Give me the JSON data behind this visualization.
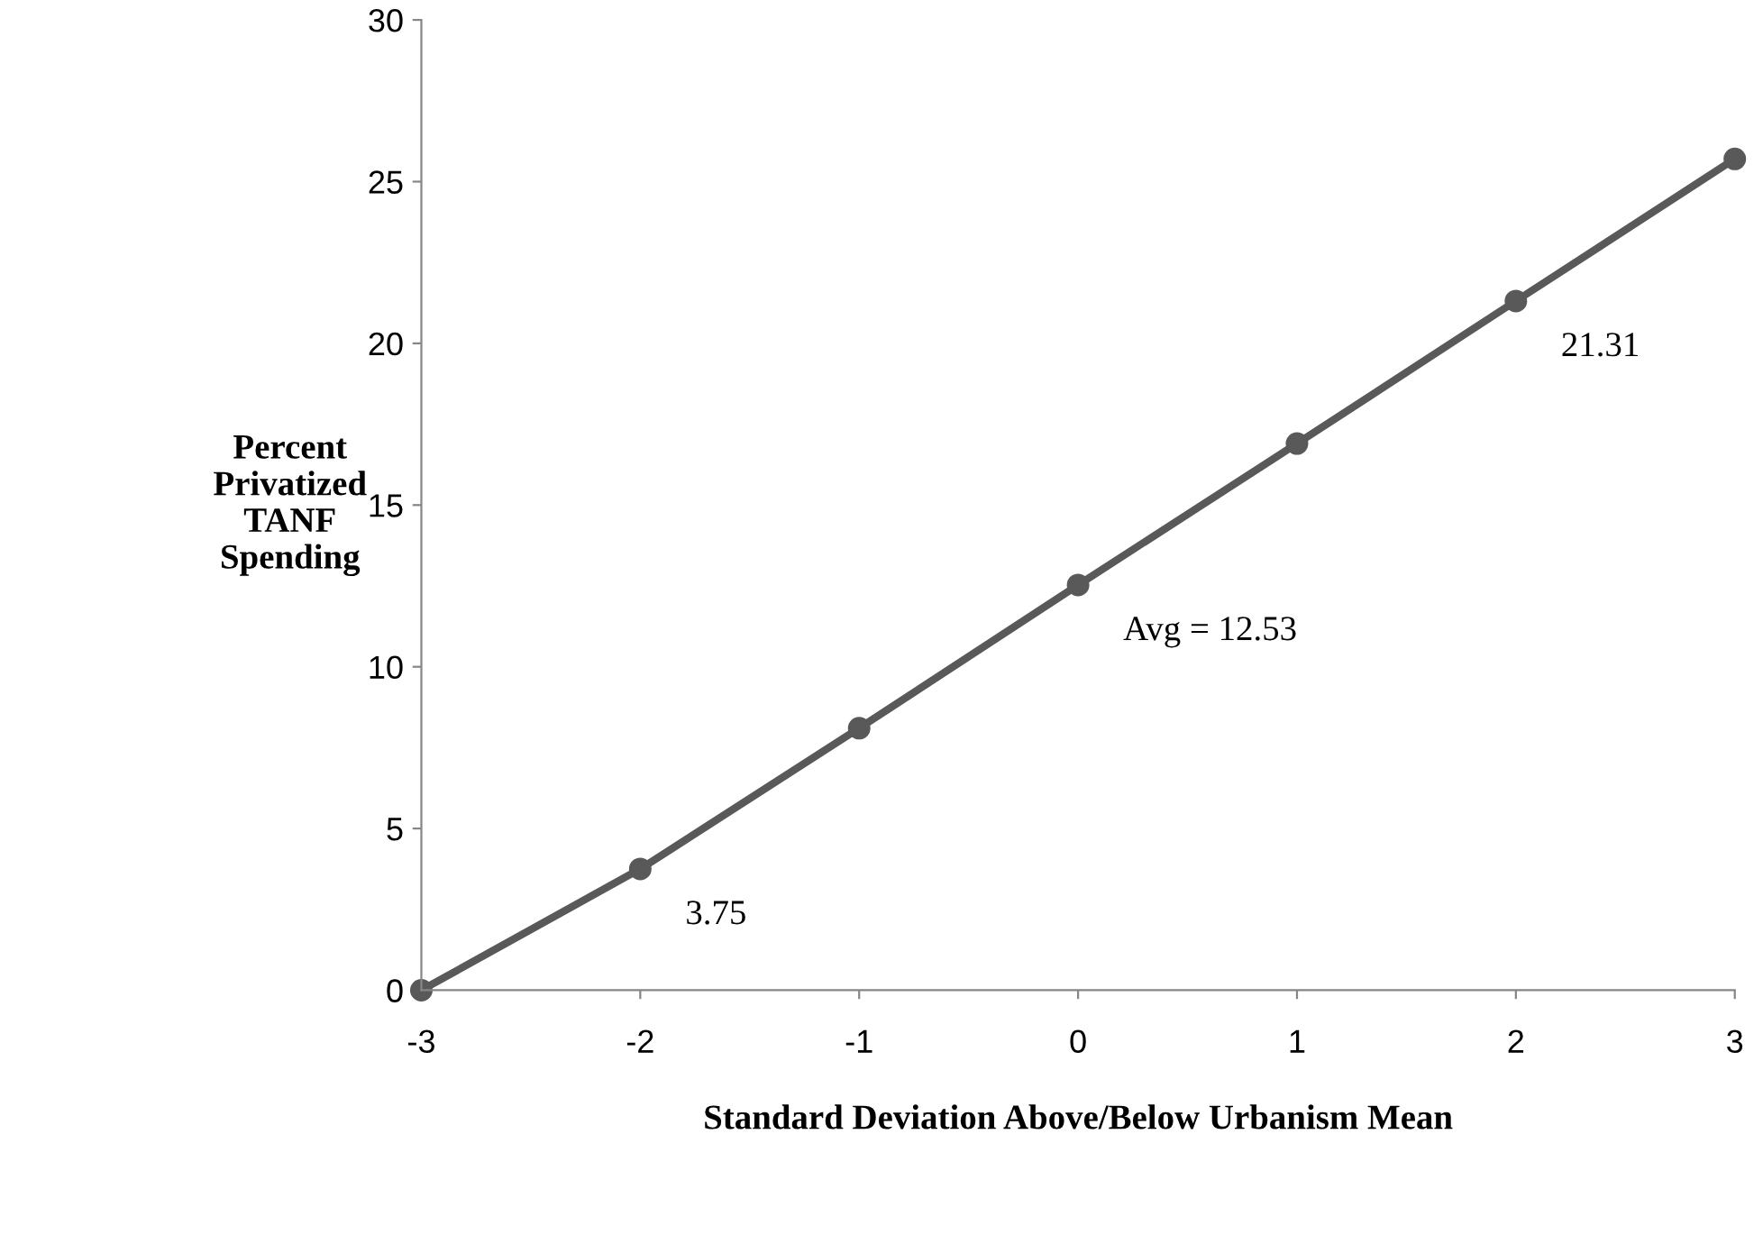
{
  "chart_data": {
    "type": "line",
    "xlabel": "Standard Deviation Above/Below Urbanism Mean",
    "ylabel": "Percent\nPrivatized\nTANF\nSpending",
    "x": [
      -3,
      -2,
      -1,
      0,
      1,
      2,
      3
    ],
    "series": [
      {
        "color": "#595959",
        "values": [
          0,
          3.75,
          8.1,
          12.53,
          16.9,
          21.31,
          25.7
        ]
      }
    ],
    "xlim": [
      -3,
      3
    ],
    "xticks": [
      -3,
      -2,
      -1,
      0,
      1,
      2,
      3
    ],
    "ylim": [
      0,
      30
    ],
    "yticks": [
      0,
      5,
      10,
      15,
      20,
      25,
      30
    ],
    "annotations": [
      {
        "text": "3.75",
        "x": -2,
        "y": 3.75
      },
      {
        "text": "Avg = 12.53",
        "x": 0,
        "y": 12.53
      },
      {
        "text": "21.31",
        "x": 2,
        "y": 21.31
      }
    ],
    "marker": "circle",
    "line_style": "solid",
    "grid": false,
    "legend": false
  }
}
